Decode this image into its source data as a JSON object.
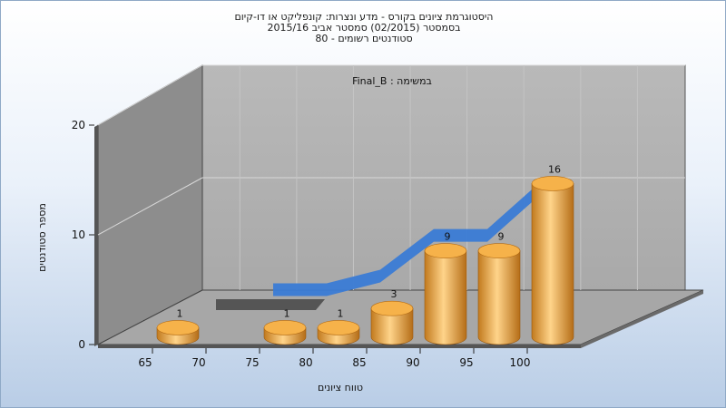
{
  "chart_data": {
    "type": "bar",
    "title_lines": [
      "היסטוגרמת ציונים בקורס - מדע ונצרות: קונפליקט או דו-קיום",
      "בסמסטר  (02/2015)  סמסטר אביב 2015/16",
      "סטודנטים רשומים - 80"
    ],
    "inner_title": "במשימה : Final_B",
    "xlabel": "טווח ציונים",
    "ylabel": "מספר סטודנטים",
    "x_ticks": [
      "65",
      "70",
      "75",
      "80",
      "85",
      "90",
      "95",
      "100"
    ],
    "y_ticks": [
      "0",
      "10",
      "20"
    ],
    "ylim": [
      0,
      20
    ],
    "bins": [
      "60-65",
      "65-70",
      "70-75",
      "75-80",
      "80-85",
      "85-90",
      "90-95",
      "95-100"
    ],
    "values": [
      1,
      0,
      1,
      1,
      3,
      9,
      9,
      16
    ],
    "labels": [
      "1",
      "",
      "1",
      "1",
      "3",
      "9",
      "9",
      "16"
    ],
    "grid": true,
    "bar_color": "#f0a845",
    "line_color": "#3a7bd5"
  }
}
